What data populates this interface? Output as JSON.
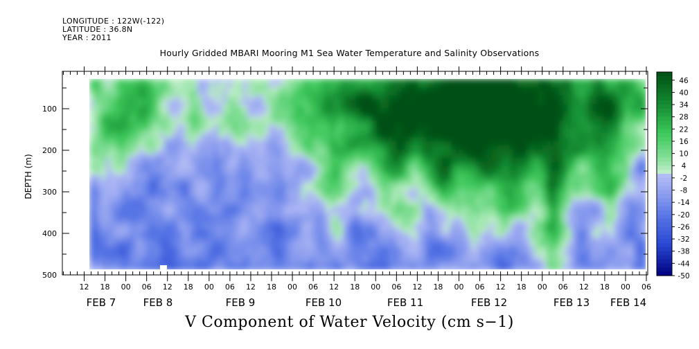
{
  "header": {
    "longitude": "LONGITUDE : 122W(-122)",
    "latitude": "LATITUDE : 36.8N",
    "year": "YEAR : 2011"
  },
  "chart_data": {
    "type": "heatmap",
    "title": "Hourly Gridded MBARI Mooring M1 Sea Water Temperature and Salinity Observations",
    "xlabel": "V Component of Water Velocity (cm s−1)",
    "ylabel": "DEPTH (m)",
    "y_ticks": [
      100,
      200,
      300,
      400,
      500
    ],
    "ylim": [
      500,
      10
    ],
    "x_hour_ticks": [
      "12",
      "18",
      "00",
      "06",
      "12",
      "18",
      "00",
      "06",
      "12",
      "18",
      "00",
      "06",
      "12",
      "18",
      "00",
      "06",
      "12",
      "18",
      "00",
      "06",
      "12",
      "18",
      "00",
      "06",
      "12",
      "18",
      "00",
      "06"
    ],
    "x_day_labels": [
      "FEB  7",
      "FEB  8",
      "FEB  9",
      "FEB 10",
      "FEB 11",
      "FEB 12",
      "FEB 13",
      "FEB 14"
    ],
    "colorbar_labels": [
      "46",
      "40",
      "34",
      "28",
      "22",
      "16",
      "10",
      "4",
      "-2",
      "-8",
      "-14",
      "-20",
      "-26",
      "-32",
      "-38",
      "-44",
      "-50"
    ],
    "colorbar_range": [
      -50,
      50
    ],
    "colors": {
      "strong_negative": "#000080",
      "moderate_negative": "#3c64dc",
      "weak_negative": "#aab4f5",
      "weak_positive": "#b4f0be",
      "moderate_positive": "#3cc85a",
      "strong_positive": "#005014"
    }
  }
}
